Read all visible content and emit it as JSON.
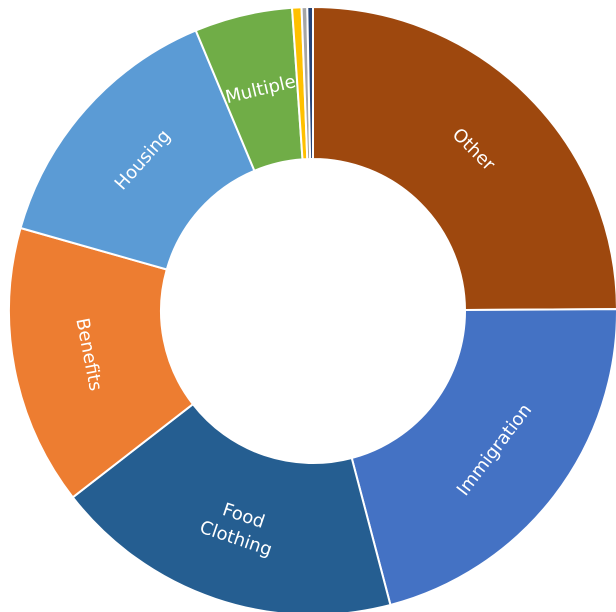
{
  "chart_data": {
    "type": "doughnut",
    "title": "",
    "legend": "none",
    "start_angle_deg": 0,
    "direction": "clockwise",
    "slices": [
      {
        "label": [
          "Other"
        ],
        "value": 24.9,
        "color": "#9e480e"
      },
      {
        "label": [
          "Immigration"
        ],
        "value": 21.0,
        "color": "#4472c4"
      },
      {
        "label": [
          "Food",
          "Clothing"
        ],
        "value": 18.6,
        "color": "#255e91"
      },
      {
        "label": [
          "Benefits"
        ],
        "value": 14.9,
        "color": "#ed7d31"
      },
      {
        "label": [
          "Housing"
        ],
        "value": 14.3,
        "color": "#5b9bd5"
      },
      {
        "label": [
          "Multiple"
        ],
        "value": 5.2,
        "color": "#70ad47"
      },
      {
        "label": [],
        "value": 0.5,
        "color": "#ffc000"
      },
      {
        "label": [],
        "value": 0.3,
        "color": "#a5a5a5"
      },
      {
        "label": [],
        "value": 0.3,
        "color": "#264478"
      }
    ]
  }
}
